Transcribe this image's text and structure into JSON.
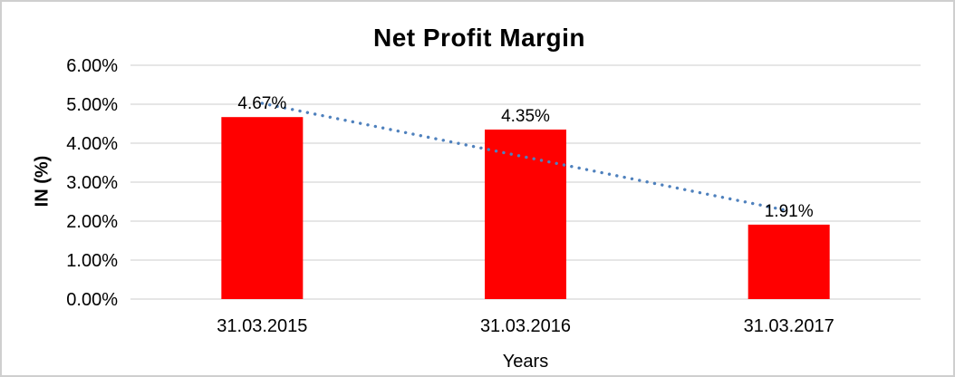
{
  "chart": {
    "background": "#ffffff",
    "frame_border_color": "#cfcfcf"
  },
  "chart_data": {
    "type": "bar",
    "title": "Net Profit Margin",
    "xlabel": "Years",
    "ylabel": "IN (%)",
    "categories": [
      "31.03.2015",
      "31.03.2016",
      "31.03.2017"
    ],
    "values": [
      4.67,
      4.35,
      1.91
    ],
    "value_labels": [
      "4.67%",
      "4.35%",
      "1.91%"
    ],
    "ylim": [
      0,
      6
    ],
    "ytick_step": 1,
    "ytick_labels": [
      "0.00%",
      "1.00%",
      "2.00%",
      "3.00%",
      "4.00%",
      "5.00%",
      "6.00%"
    ],
    "grid": true,
    "legend": "none",
    "bar_color": "#ff0000",
    "gridline_color": "#d6d6d6",
    "trendline": {
      "type": "linear",
      "style": "dotted",
      "color": "#4f81bd"
    }
  }
}
